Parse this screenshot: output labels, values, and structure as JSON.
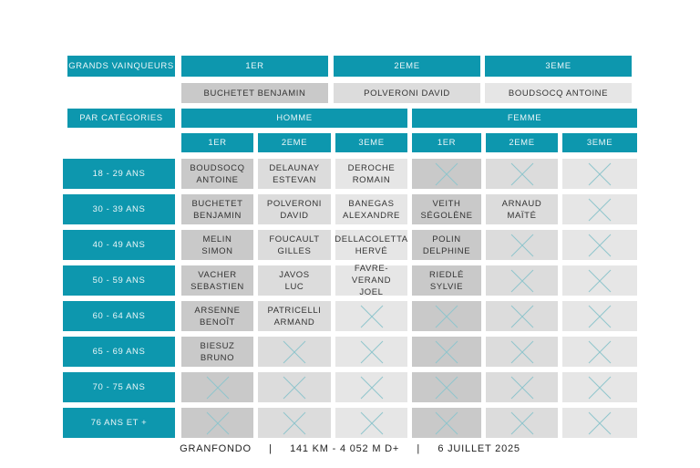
{
  "colors": {
    "accent": "#0d97ae",
    "cell_dark": "#c9c9c9",
    "cell_mid": "#dcdcdc",
    "cell_light": "#e6e6e6",
    "cross": "#8fc5cc"
  },
  "grands_vainqueurs": {
    "label": "GRANDS VAINQUEURS",
    "places": [
      "1ER",
      "2EME",
      "3EME"
    ],
    "winners": [
      "BUCHETET BENJAMIN",
      "POLVERONI DAVID",
      "BOUDSOCQ ANTOINE"
    ]
  },
  "categories": {
    "label": "PAR CATÉGORIES",
    "genders": [
      "HOMME",
      "FEMME"
    ],
    "places": [
      "1ER",
      "2EME",
      "3EME",
      "1ER",
      "2EME",
      "3EME"
    ],
    "rows": [
      {
        "label": "18 - 29 ANS",
        "cells": [
          "BOUDSOCQ\nANTOINE",
          "DELAUNAY\nESTEVAN",
          "DEROCHE\nROMAIN",
          null,
          null,
          null
        ]
      },
      {
        "label": "30 - 39 ANS",
        "cells": [
          "BUCHETET\nBENJAMIN",
          "POLVERONI\nDAVID",
          "BANEGAS\nALEXANDRE",
          "VEITH\nSÉGOLÈNE",
          "ARNAUD\nMAÏTÉ",
          null
        ]
      },
      {
        "label": "40 - 49 ANS",
        "cells": [
          "MELIN\nSIMON",
          "FOUCAULT\nGILLES",
          "DELLACOLETTA\nHERVÉ",
          "POLIN\nDELPHINE",
          null,
          null
        ]
      },
      {
        "label": "50 - 59 ANS",
        "cells": [
          "VACHER\nSEBASTIEN",
          "JAVOS\nLUC",
          "FAVRE-VERAND\nJOEL",
          "RIEDLÉ\nSYLVIE",
          null,
          null
        ]
      },
      {
        "label": "60 - 64 ANS",
        "cells": [
          "ARSENNE\nBENOÎT",
          "PATRICELLI\nARMAND",
          null,
          null,
          null,
          null
        ]
      },
      {
        "label": "65 - 69 ANS",
        "cells": [
          "BIESUZ\nBRUNO",
          null,
          null,
          null,
          null,
          null
        ]
      },
      {
        "label": "70 - 75 ANS",
        "cells": [
          null,
          null,
          null,
          null,
          null,
          null
        ]
      },
      {
        "label": "76 ANS ET +",
        "cells": [
          null,
          null,
          null,
          null,
          null,
          null
        ]
      }
    ]
  },
  "footer": {
    "event": "GRANFONDO",
    "distance": "141 KM - 4 052 M D+",
    "date": "6 JUILLET 2025"
  },
  "icons": {
    "empty_cell": "cross-icon"
  }
}
